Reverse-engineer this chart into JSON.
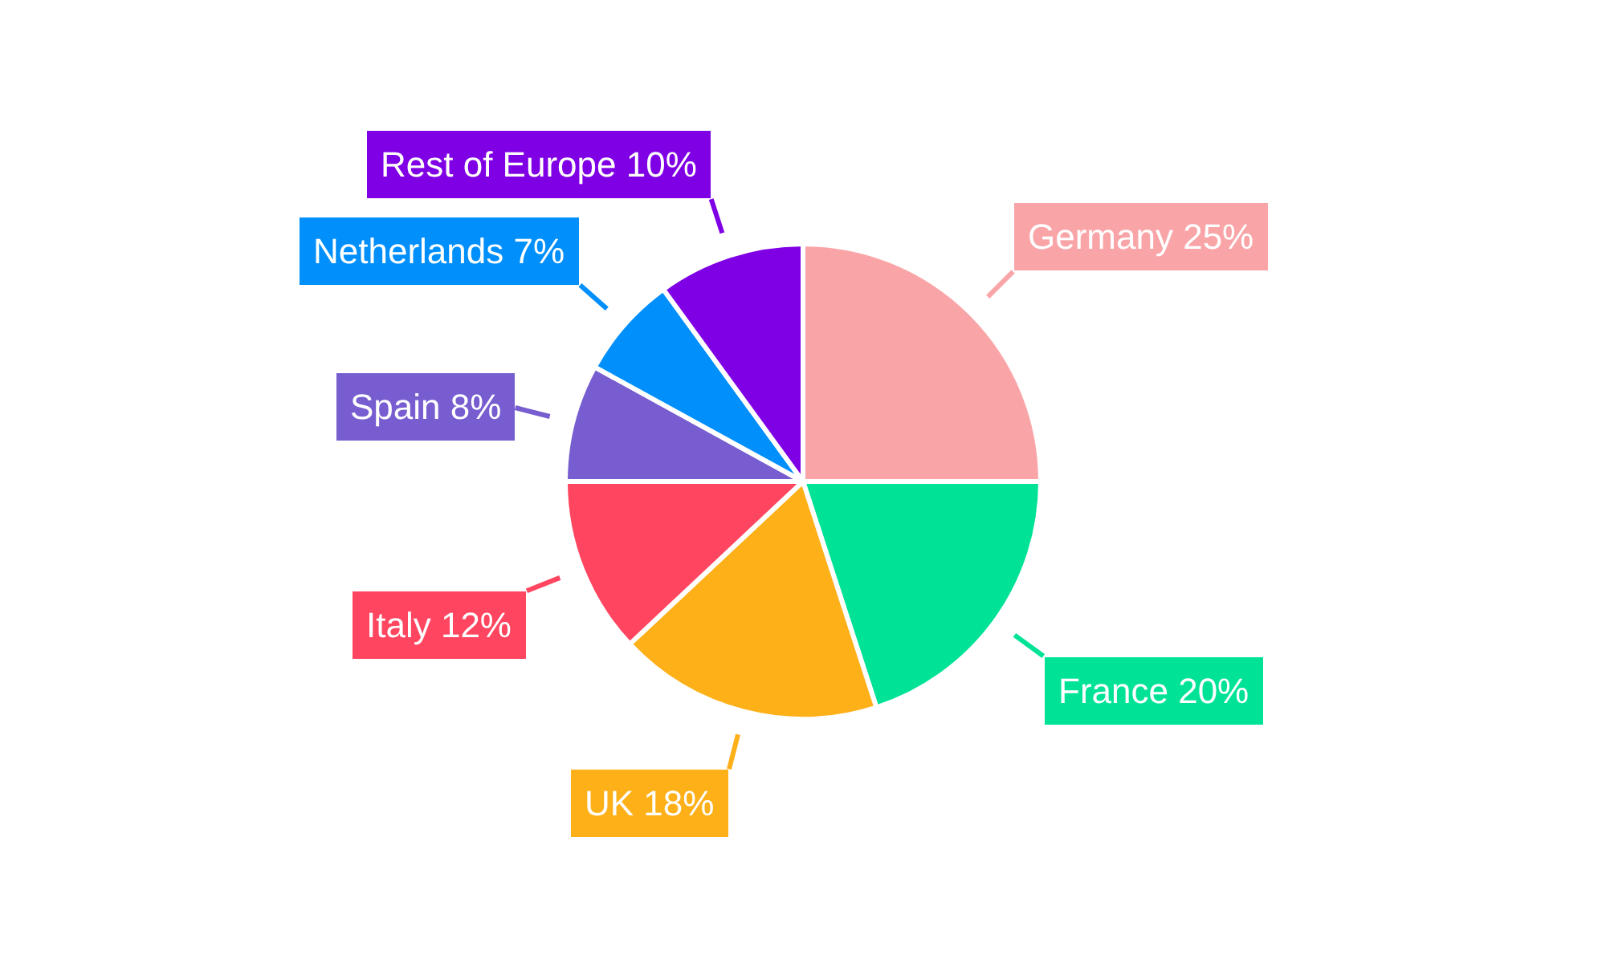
{
  "chart_data": {
    "type": "pie",
    "categories": [
      "Germany",
      "France",
      "UK",
      "Italy",
      "Spain",
      "Netherlands",
      "Rest of Europe"
    ],
    "values": [
      25,
      20,
      18,
      12,
      8,
      7,
      10
    ],
    "colors": [
      "#f9a5a8",
      "#00e396",
      "#feb019",
      "#ff4560",
      "#775dd0",
      "#008ffb",
      "#8000e5"
    ],
    "value_labels": [
      "25%",
      "20%",
      "18%",
      "12%",
      "8%",
      "7%",
      "10%"
    ],
    "legend": false
  }
}
